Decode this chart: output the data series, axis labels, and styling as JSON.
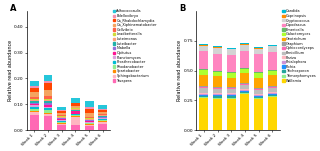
{
  "weeks": [
    "Week 1",
    "Week 2",
    "Week 3",
    "Week 4",
    "Week 5",
    "Week 6"
  ],
  "panel_A": {
    "title": "A",
    "ylabel": "Relative read abundance",
    "ylim": [
      0,
      0.46
    ],
    "yticks": [
      0.0,
      0.1,
      0.2,
      0.3,
      0.4
    ],
    "genera": [
      "Truepera",
      "Sphingobacterium",
      "Spartobacter",
      "Rhodanobacter",
      "Prosthecobacter",
      "Planctomyces",
      "Opitutus",
      "Niabella",
      "Luteibacter",
      "Luteimonas",
      "Leadbetterella",
      "Cellvibrio",
      "Ca_Xiphinematobacter",
      "Ca_Rhabdochlamydia",
      "Bdellovibryo",
      "Adhococcaulis"
    ],
    "colors": [
      "#FF69B4",
      "#FFB6C1",
      "#FF8C00",
      "#90EE90",
      "#00BCD4",
      "#DDA0DD",
      "#FF1493",
      "#9370DB",
      "#20B2AA",
      "#FFA07A",
      "#CDDC39",
      "#FF6347",
      "#F4A460",
      "#FF4500",
      "#F48FB1",
      "#26C6DA"
    ],
    "vals": [
      [
        0.06,
        0.055,
        0.02,
        0.02,
        0.015,
        0.025
      ],
      [
        0.01,
        0.008,
        0.005,
        0.03,
        0.005,
        0.008
      ],
      [
        0.005,
        0.005,
        0.003,
        0.003,
        0.003,
        0.003
      ],
      [
        0.008,
        0.008,
        0.005,
        0.005,
        0.003,
        0.003
      ],
      [
        0.008,
        0.01,
        0.003,
        0.003,
        0.003,
        0.003
      ],
      [
        0.005,
        0.005,
        0.003,
        0.003,
        0.003,
        0.003
      ],
      [
        0.005,
        0.008,
        0.003,
        0.008,
        0.003,
        0.003
      ],
      [
        0.005,
        0.005,
        0.003,
        0.003,
        0.003,
        0.003
      ],
      [
        0.005,
        0.008,
        0.003,
        0.003,
        0.003,
        0.003
      ],
      [
        0.005,
        0.005,
        0.003,
        0.003,
        0.003,
        0.003
      ],
      [
        0.005,
        0.005,
        0.003,
        0.003,
        0.003,
        0.003
      ],
      [
        0.008,
        0.01,
        0.003,
        0.003,
        0.003,
        0.003
      ],
      [
        0.02,
        0.025,
        0.008,
        0.008,
        0.015,
        0.008
      ],
      [
        0.015,
        0.025,
        0.008,
        0.008,
        0.015,
        0.008
      ],
      [
        0.005,
        0.008,
        0.003,
        0.003,
        0.008,
        0.003
      ],
      [
        0.02,
        0.025,
        0.015,
        0.02,
        0.025,
        0.015
      ]
    ]
  },
  "panel_B": {
    "title": "B",
    "ylabel": "Relative read abundance",
    "ylim": [
      0,
      1.0
    ],
    "yticks": [
      0.0,
      0.25,
      0.5,
      0.75
    ],
    "genera": [
      "Wallemia",
      "Trimorphomyces",
      "Trichosporon",
      "Pichia",
      "Phialophora",
      "Peziza",
      "Penicillium",
      "Ophiocordyceps",
      "Graphium",
      "Geotrichum",
      "Galactomyces",
      "Emericella",
      "Dipodascus",
      "Cryptococcus",
      "Coprinopsis",
      "Candida"
    ],
    "colors": [
      "#FFD700",
      "#90EE90",
      "#26A69A",
      "#1E90FF",
      "#CE93D8",
      "#FFB6C1",
      "#BDBDBD",
      "#FF69B4",
      "#9E9E9E",
      "#FFA500",
      "#ADFF2F",
      "#66BB6A",
      "#FF85C0",
      "#D3D3D3",
      "#FF8C00",
      "#00BCD4"
    ],
    "vals": [
      [
        0.27,
        0.265,
        0.265,
        0.3,
        0.26,
        0.275
      ],
      [
        0.008,
        0.008,
        0.008,
        0.008,
        0.008,
        0.008
      ],
      [
        0.01,
        0.01,
        0.01,
        0.01,
        0.01,
        0.01
      ],
      [
        0.01,
        0.01,
        0.01,
        0.01,
        0.01,
        0.01
      ],
      [
        0.008,
        0.008,
        0.008,
        0.008,
        0.008,
        0.008
      ],
      [
        0.01,
        0.01,
        0.01,
        0.01,
        0.01,
        0.01
      ],
      [
        0.04,
        0.035,
        0.035,
        0.035,
        0.035,
        0.035
      ],
      [
        0.008,
        0.008,
        0.008,
        0.008,
        0.008,
        0.008
      ],
      [
        0.008,
        0.008,
        0.008,
        0.008,
        0.008,
        0.008
      ],
      [
        0.095,
        0.09,
        0.08,
        0.08,
        0.085,
        0.09
      ],
      [
        0.04,
        0.038,
        0.038,
        0.038,
        0.038,
        0.038
      ],
      [
        0.008,
        0.008,
        0.008,
        0.008,
        0.008,
        0.008
      ],
      [
        0.15,
        0.145,
        0.145,
        0.145,
        0.15,
        0.15
      ],
      [
        0.045,
        0.045,
        0.045,
        0.045,
        0.045,
        0.045
      ],
      [
        0.008,
        0.008,
        0.008,
        0.008,
        0.008,
        0.008
      ],
      [
        0.008,
        0.008,
        0.008,
        0.008,
        0.008,
        0.008
      ]
    ]
  }
}
